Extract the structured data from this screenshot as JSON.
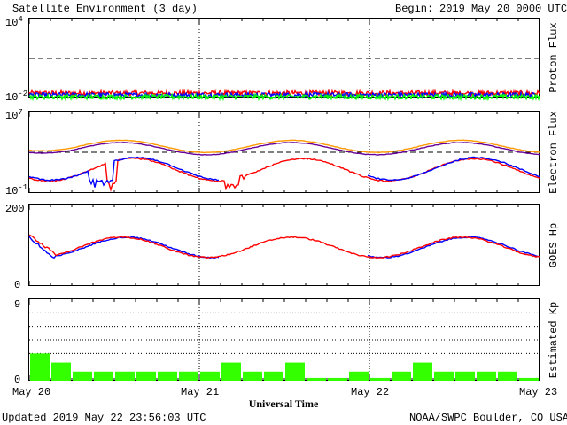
{
  "header": {
    "title": "Satellite Environment (3 day)",
    "begin_label": "Begin:",
    "begin_value": "2019 May 20 0000 UTC"
  },
  "footer": {
    "updated": "Updated 2019 May 22 23:56:03 UTC",
    "credit": "NOAA/SWPC Boulder, CO USA"
  },
  "chart_data": [
    {
      "type": "line",
      "panel": "proton",
      "ylabel": "Proton Flux",
      "yscale": "log",
      "ylim": [
        0.01,
        10000
      ],
      "tick_labels": {
        "top": "10",
        "top_exp": "4",
        "bottom": "10",
        "bottom_exp": "-2"
      },
      "threshold": 10,
      "colors": {
        "red": "#ff0000",
        "blue": "#0000ff",
        "green": "#00ff00"
      },
      "series": [
        {
          "color": "red",
          "level": 0.025
        },
        {
          "color": "blue",
          "level": 0.018
        },
        {
          "color": "green",
          "level": 0.013
        }
      ]
    },
    {
      "type": "line",
      "panel": "electron",
      "ylabel": "Electron Flux",
      "yscale": "log",
      "ylim": [
        0.1,
        10000000
      ],
      "tick_labels": {
        "top": "10",
        "top_exp": "7",
        "bottom": "10",
        "bottom_exp": "-1"
      },
      "threshold": 1000,
      "colors": {
        "orange": "#ff9900",
        "purple": "#660099",
        "blue": "#0000ff",
        "red": "#ff0000"
      }
    },
    {
      "type": "line",
      "panel": "goes_hp",
      "ylabel": "GOES Hp",
      "ylim": [
        0,
        200
      ],
      "tick_labels": [
        "200",
        "0"
      ],
      "colors": {
        "blue": "#0000ff",
        "red": "#ff0000"
      }
    },
    {
      "type": "bar",
      "panel": "kp",
      "ylabel": "Estimated Kp",
      "ylim": [
        0,
        9
      ],
      "tick_labels": [
        "9",
        "0"
      ],
      "color": "#33ff00",
      "values": [
        3,
        2,
        1,
        1,
        1,
        1,
        1,
        1,
        1,
        2,
        1,
        1,
        2,
        0.3,
        0.3,
        1,
        0.3,
        1,
        2,
        1,
        1,
        1,
        1,
        0.3
      ]
    }
  ],
  "x_axis": {
    "label": "Universal Time",
    "ticks": [
      "May 20",
      "May 21",
      "May 22",
      "May 23"
    ],
    "range_days": 3
  }
}
